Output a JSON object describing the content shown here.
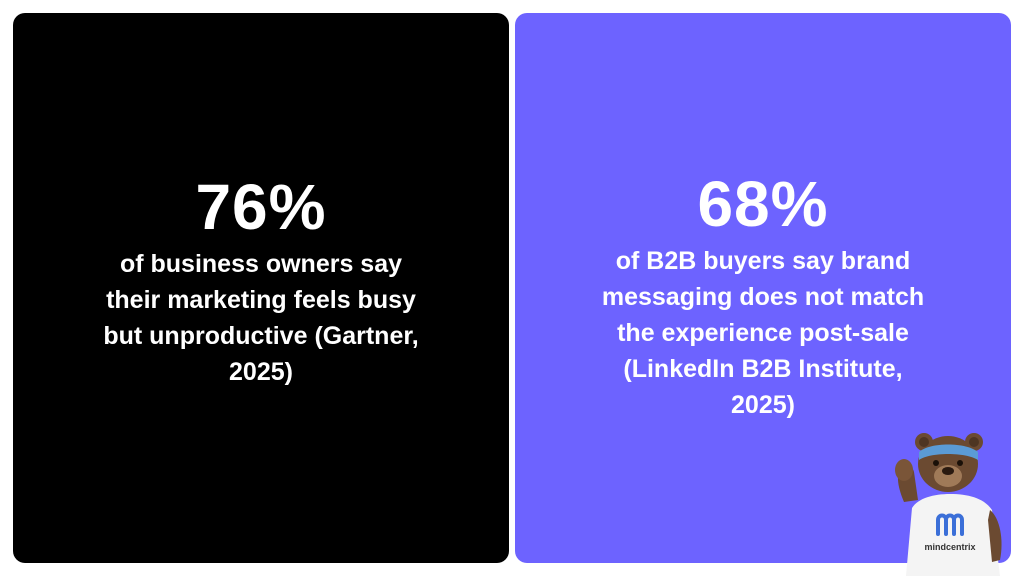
{
  "colors": {
    "left_card": "#000000",
    "right_card": "#6d63ff",
    "text": "#ffffff",
    "headband": "#5b9bd5",
    "bear_fur": "#6b4a31",
    "shirt": "#f4f4f4",
    "logo": "#3b6fd8"
  },
  "left_card": {
    "stat": "76%",
    "description": "of business owners say\ntheir marketing feels busy\nbut unproductive (Gartner,\n2025)"
  },
  "right_card": {
    "stat": "68%",
    "description": "of B2B buyers say brand\nmessaging does not match\nthe experience post-sale\n(LinkedIn B2B Institute,\n2025)"
  },
  "mascot": {
    "icon": "bear-mascot-icon",
    "brand": "mindcentrix"
  }
}
